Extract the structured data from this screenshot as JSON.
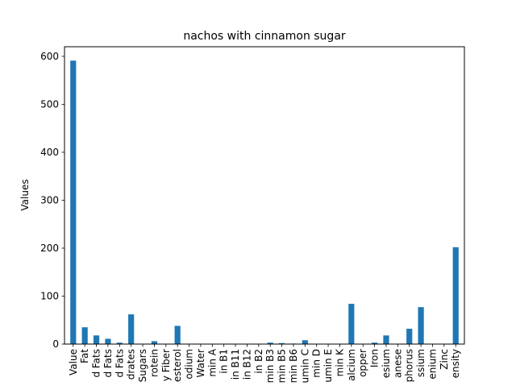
{
  "chart_data": {
    "type": "bar",
    "title": "nachos with cinnamon sugar",
    "xlabel": "",
    "ylabel": "Values",
    "ylim": [
      0,
      620
    ],
    "yticks": [
      0,
      100,
      200,
      300,
      400,
      500,
      600
    ],
    "legend": "none",
    "grid": false,
    "bar_color": "#1f77b4",
    "categories": [
      "Value",
      "Fat",
      "d Fats",
      "d Fats",
      "d Fats",
      "drates",
      "Sugars",
      "rotein",
      "y Fiber",
      "esterol",
      "odium",
      "Water",
      "min A",
      "in B1",
      "in B11",
      "in B12",
      "in B2",
      "min B3",
      "min B5",
      "min B6",
      "umin C",
      "min D",
      "umin E",
      "min K",
      "alcium",
      "opper",
      "Iron",
      "esium",
      "anese",
      "phorus",
      "ssium",
      "enium",
      "Zinc",
      "ensity"
    ],
    "values": [
      591,
      35,
      18,
      11,
      3,
      62,
      0,
      6,
      0,
      38,
      0,
      0,
      0,
      0,
      0,
      0,
      0,
      3,
      2,
      1,
      8,
      0,
      0,
      0,
      84,
      0,
      3,
      18,
      0,
      32,
      77,
      0,
      0,
      202
    ]
  }
}
